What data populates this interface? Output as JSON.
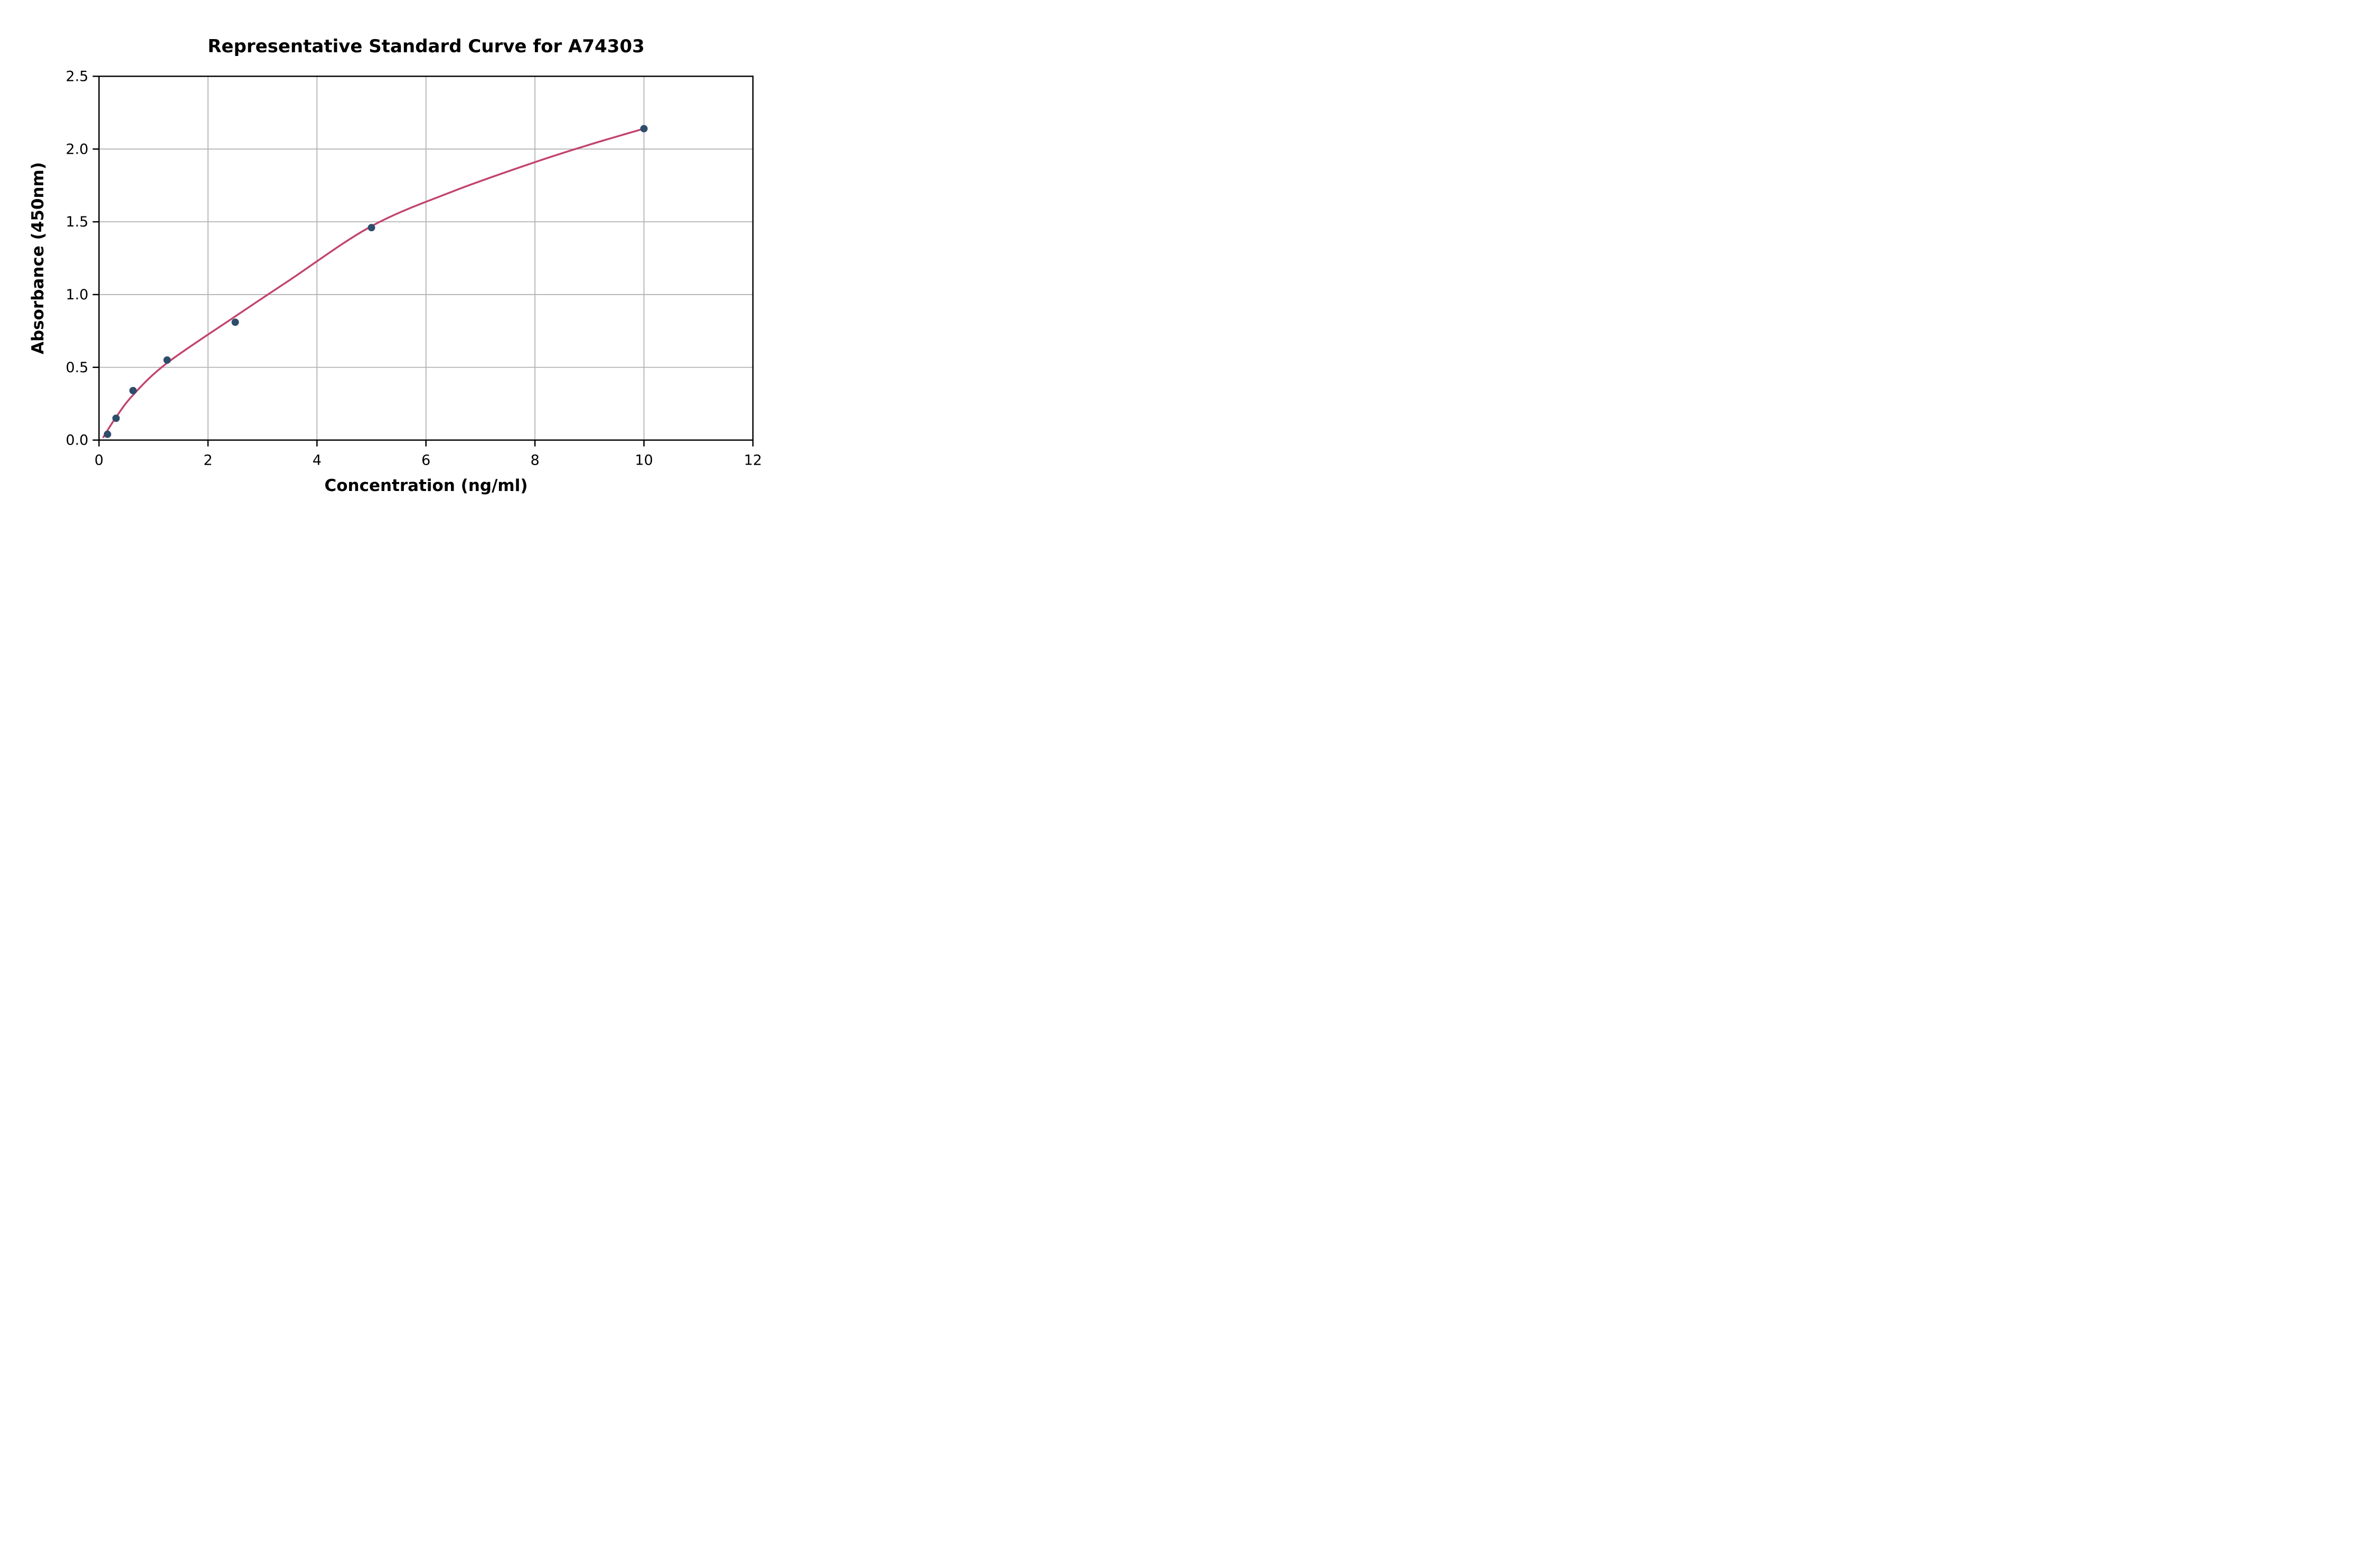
{
  "chart_data": {
    "type": "scatter",
    "title": "Representative Standard Curve for A74303",
    "xlabel": "Concentration (ng/ml)",
    "ylabel": "Absorbance (450nm)",
    "xlim": [
      0,
      12
    ],
    "ylim": [
      0,
      2.5
    ],
    "xticks": [
      0,
      2,
      4,
      6,
      8,
      10,
      12
    ],
    "xtick_labels": [
      "0",
      "2",
      "4",
      "6",
      "8",
      "10",
      "12"
    ],
    "yticks": [
      0,
      0.5,
      1.0,
      1.5,
      2.0,
      2.5
    ],
    "ytick_labels": [
      "0.0",
      "0.5",
      "1.0",
      "1.5",
      "2.0",
      "2.5"
    ],
    "grid": true,
    "legend": "none",
    "points": [
      {
        "x": 0.156,
        "y": 0.04
      },
      {
        "x": 0.313,
        "y": 0.15
      },
      {
        "x": 0.625,
        "y": 0.34
      },
      {
        "x": 1.25,
        "y": 0.55
      },
      {
        "x": 2.5,
        "y": 0.81
      },
      {
        "x": 5.0,
        "y": 1.46
      },
      {
        "x": 10.0,
        "y": 2.14
      }
    ],
    "fit_curve": [
      {
        "x": 0.08,
        "y": 0.02
      },
      {
        "x": 0.3,
        "y": 0.15
      },
      {
        "x": 0.625,
        "y": 0.31
      },
      {
        "x": 1.25,
        "y": 0.53
      },
      {
        "x": 2.5,
        "y": 0.85
      },
      {
        "x": 3.5,
        "y": 1.1
      },
      {
        "x": 5.0,
        "y": 1.47
      },
      {
        "x": 6.5,
        "y": 1.71
      },
      {
        "x": 8.0,
        "y": 1.91
      },
      {
        "x": 9.0,
        "y": 2.03
      },
      {
        "x": 10.0,
        "y": 2.14
      }
    ],
    "colors": {
      "point_color": "#2e4d6b",
      "curve_color": "#c2446e",
      "grid_color": "#b3b3b3",
      "axis_color": "#000000",
      "background": "#ffffff"
    }
  }
}
